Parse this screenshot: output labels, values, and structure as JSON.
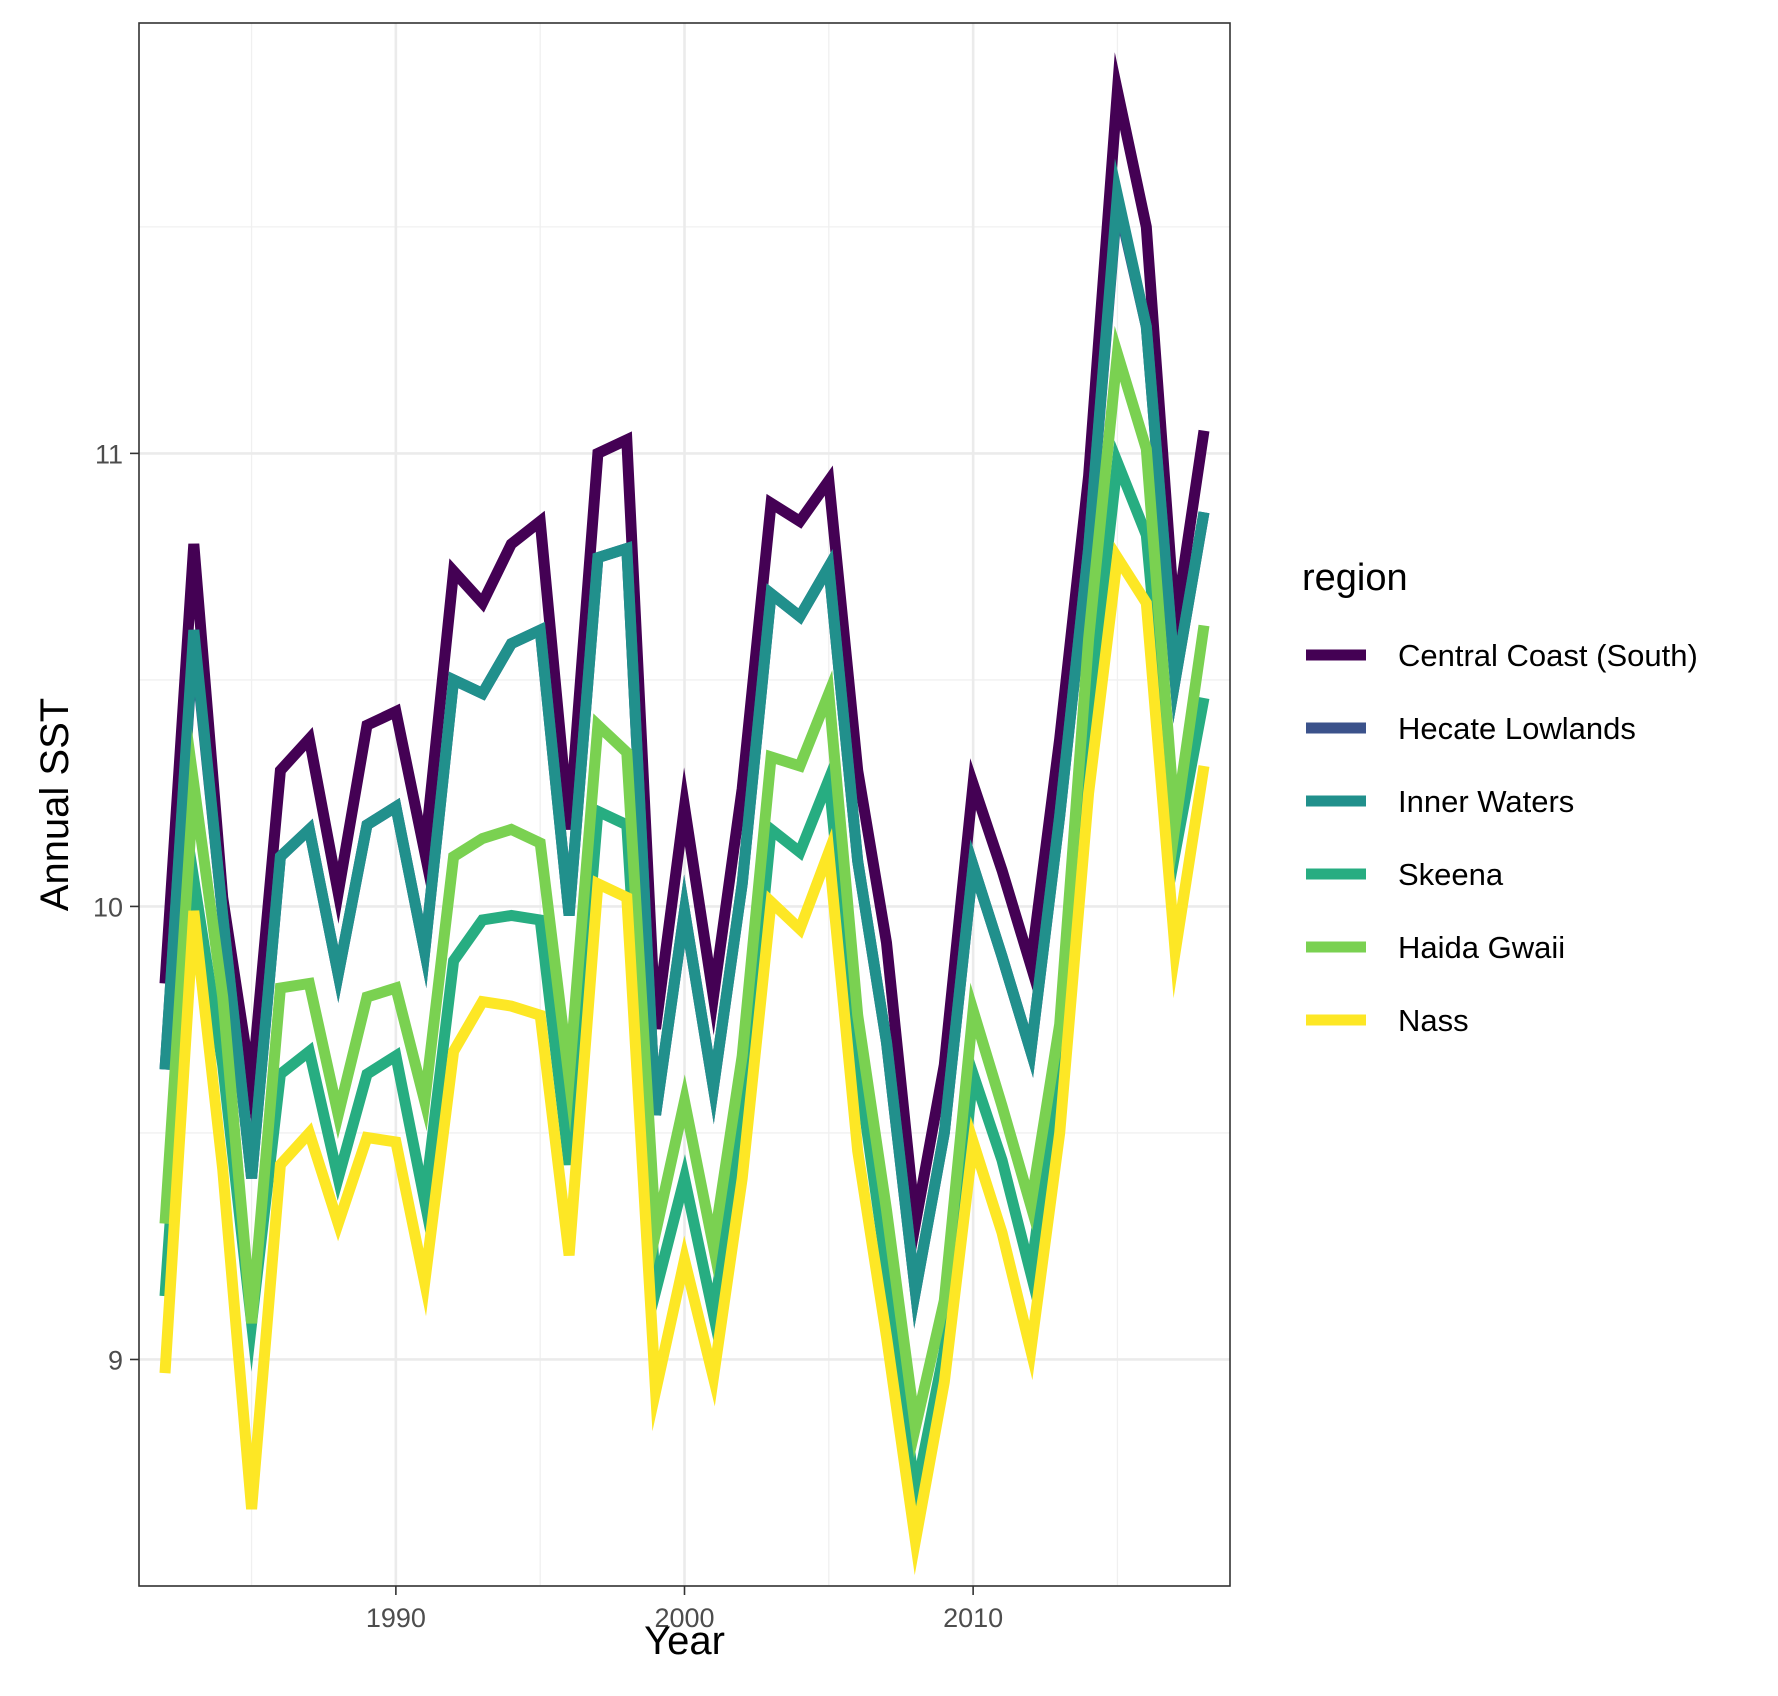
{
  "chart_data": {
    "type": "line",
    "title": "",
    "xlabel": "Year",
    "ylabel": "Annual SST",
    "xlim": [
      1981.1,
      2018.9
    ],
    "ylim": [
      8.5,
      11.95
    ],
    "x_ticks": [
      1990,
      2000,
      2010
    ],
    "y_ticks": [
      9,
      10,
      11
    ],
    "grid": true,
    "legend_title": "region",
    "legend_position": "right",
    "x": [
      1982,
      1983,
      1984,
      1985,
      1986,
      1987,
      1988,
      1989,
      1990,
      1991,
      1992,
      1993,
      1994,
      1995,
      1996,
      1997,
      1998,
      1999,
      2000,
      2001,
      2002,
      2003,
      2004,
      2005,
      2006,
      2007,
      2008,
      2009,
      2010,
      2011,
      2012,
      2013,
      2014,
      2015,
      2016,
      2017,
      2018
    ],
    "series": [
      {
        "name": "Central Coast (South)",
        "color": "#440154",
        "values": [
          9.83,
          10.8,
          10.02,
          9.6,
          10.3,
          10.37,
          10.03,
          10.4,
          10.43,
          10.12,
          10.74,
          10.67,
          10.8,
          10.85,
          10.17,
          11.0,
          11.03,
          9.73,
          10.22,
          9.8,
          10.26,
          10.89,
          10.85,
          10.94,
          10.3,
          9.92,
          9.3,
          9.65,
          10.27,
          10.08,
          9.87,
          10.37,
          10.95,
          11.8,
          11.5,
          10.62,
          11.05
        ]
      },
      {
        "name": "Hecate Lowlands",
        "color": "#3b528b",
        "values": [
          9.64,
          10.6,
          9.98,
          9.4,
          10.11,
          10.17,
          9.85,
          10.18,
          10.22,
          9.9,
          10.5,
          10.47,
          10.58,
          10.61,
          9.98,
          10.77,
          10.79,
          9.54,
          9.99,
          9.6,
          10.05,
          10.69,
          10.64,
          10.75,
          10.1,
          9.7,
          9.15,
          9.5,
          10.09,
          9.89,
          9.68,
          10.2,
          10.79,
          11.56,
          11.28,
          10.5,
          10.87
        ]
      },
      {
        "name": "Inner Waters",
        "color": "#21908c",
        "values": [
          9.64,
          10.61,
          9.98,
          9.4,
          10.11,
          10.17,
          9.85,
          10.18,
          10.22,
          9.9,
          10.5,
          10.47,
          10.58,
          10.61,
          9.98,
          10.77,
          10.79,
          9.54,
          9.99,
          9.6,
          10.05,
          10.69,
          10.64,
          10.75,
          10.1,
          9.7,
          9.15,
          9.5,
          10.09,
          9.89,
          9.68,
          10.2,
          10.79,
          11.57,
          11.28,
          10.5,
          10.87
        ]
      },
      {
        "name": "Skeena",
        "color": "#27ad81",
        "values": [
          9.14,
          10.06,
          9.65,
          9.08,
          9.63,
          9.68,
          9.4,
          9.63,
          9.67,
          9.35,
          9.88,
          9.97,
          9.98,
          9.97,
          9.43,
          10.21,
          10.18,
          9.15,
          9.4,
          9.1,
          9.52,
          10.17,
          10.12,
          10.28,
          9.65,
          9.2,
          8.7,
          9.02,
          9.63,
          9.44,
          9.19,
          9.67,
          10.42,
          10.98,
          10.82,
          10.12,
          10.46
        ]
      },
      {
        "name": "Haida Gwaii",
        "color": "#7ad151",
        "values": [
          9.3,
          10.27,
          9.8,
          9.08,
          9.82,
          9.83,
          9.54,
          9.8,
          9.82,
          9.57,
          10.11,
          10.15,
          10.17,
          10.14,
          9.62,
          10.4,
          10.34,
          9.28,
          9.57,
          9.25,
          9.67,
          10.33,
          10.31,
          10.47,
          9.76,
          9.33,
          8.85,
          9.13,
          9.77,
          9.56,
          9.34,
          9.74,
          10.59,
          11.22,
          11.01,
          10.18,
          10.62
        ]
      },
      {
        "name": "Nass",
        "color": "#fde725",
        "values": [
          8.97,
          9.99,
          9.42,
          8.67,
          9.43,
          9.5,
          9.3,
          9.49,
          9.48,
          9.17,
          9.68,
          9.79,
          9.78,
          9.76,
          9.23,
          10.05,
          10.02,
          8.93,
          9.22,
          8.96,
          9.4,
          10.01,
          9.95,
          10.12,
          9.46,
          9.05,
          8.6,
          8.95,
          9.48,
          9.28,
          9.02,
          9.5,
          10.25,
          10.77,
          10.67,
          9.9,
          10.31
        ]
      }
    ]
  }
}
